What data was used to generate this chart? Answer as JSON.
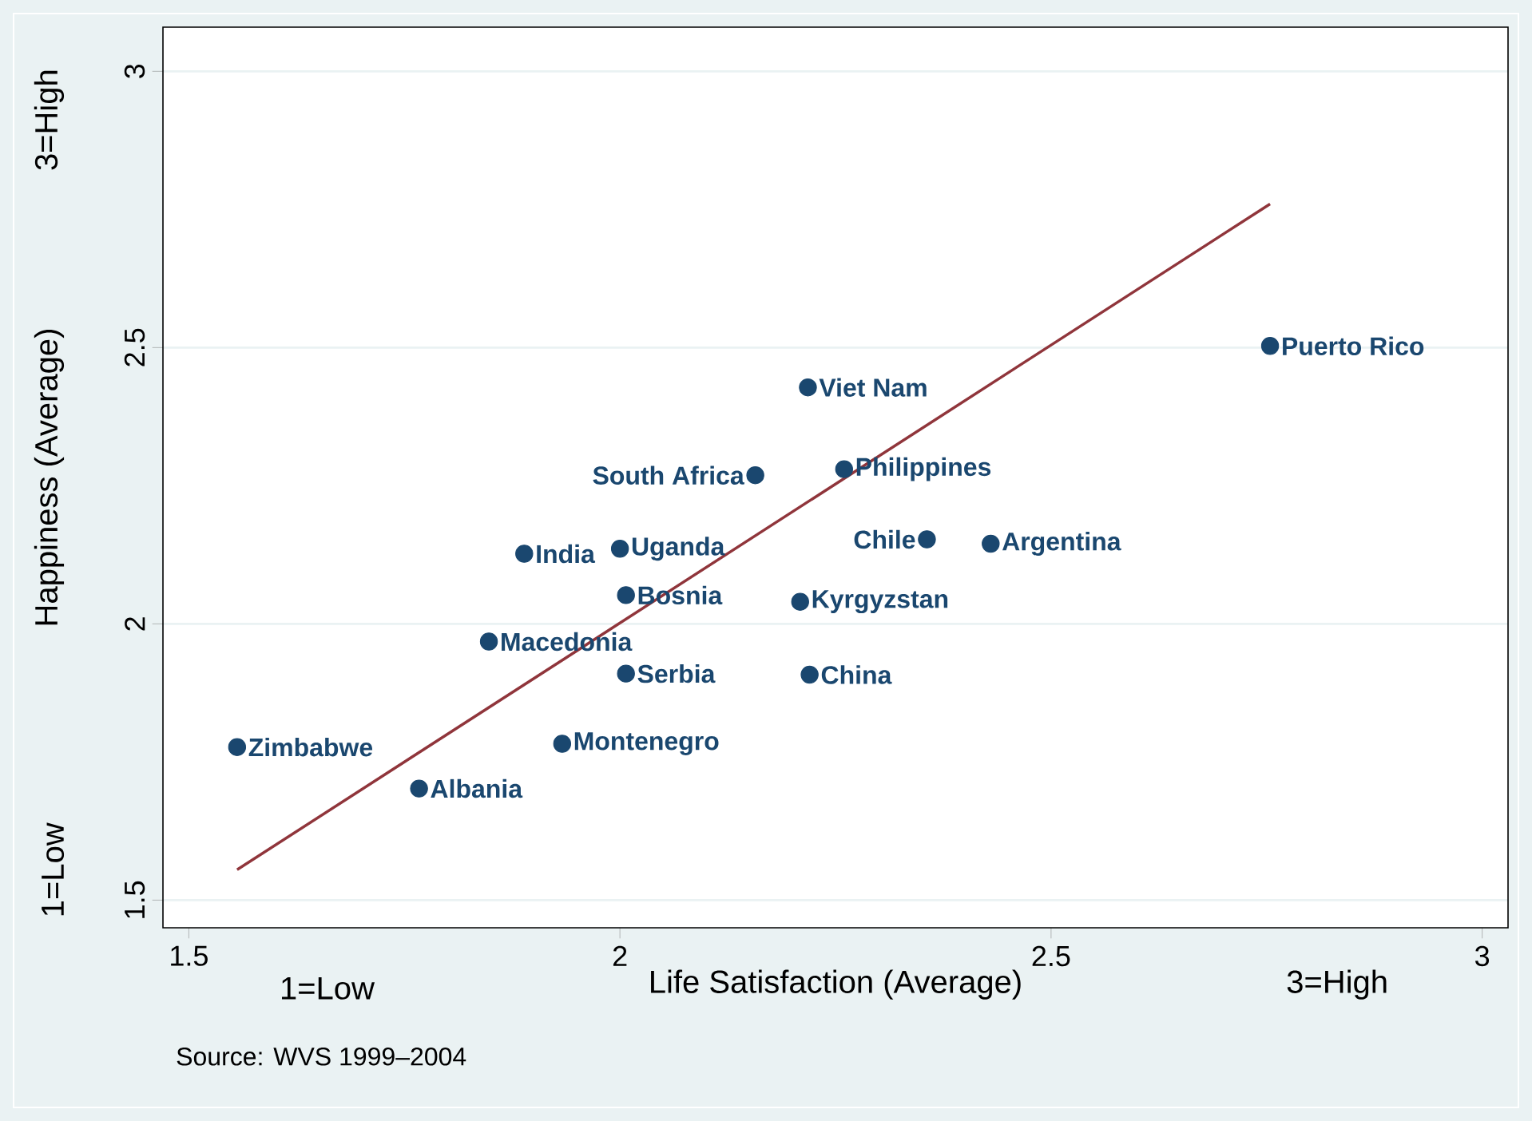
{
  "chart_data": {
    "type": "scatter",
    "xlabel": "Life Satisfaction (Average)",
    "ylabel": "Happiness (Average)",
    "xlim": [
      1.47,
      3.03
    ],
    "ylim": [
      1.45,
      3.08
    ],
    "xticks": [
      1.5,
      2,
      2.5,
      3
    ],
    "yticks": [
      1.5,
      2,
      2.5,
      3
    ],
    "grid": "y",
    "marker": "circle",
    "series": [
      {
        "color": "#1a476f",
        "x": [
          1.556,
          1.767,
          1.848,
          1.889,
          1.933,
          2.0,
          2.007,
          2.007,
          2.157,
          2.209,
          2.218,
          2.22,
          2.26,
          2.356,
          2.43,
          2.754
        ],
        "values": [
          1.777,
          1.702,
          1.968,
          2.127,
          1.783,
          2.136,
          2.052,
          1.91,
          2.269,
          2.04,
          2.428,
          1.908,
          2.28,
          2.153,
          2.145,
          2.503
        ]
      },
      {
        "type": "line",
        "color": "#90353b",
        "marker": "none",
        "x": [
          1.556,
          2.754
        ],
        "values": [
          1.555,
          2.76
        ]
      }
    ],
    "annotations": [
      {
        "text": "Zimbabwe",
        "x": 1.556,
        "y": 1.777
      },
      {
        "text": "Albania",
        "x": 1.767,
        "y": 1.702
      },
      {
        "text": "Macedonia",
        "x": 1.848,
        "y": 1.968
      },
      {
        "text": "India",
        "x": 1.889,
        "y": 2.127
      },
      {
        "text": "Montenegro",
        "x": 1.933,
        "y": 1.783
      },
      {
        "text": "Uganda",
        "x": 2.0,
        "y": 2.136
      },
      {
        "text": "Bosnia",
        "x": 2.007,
        "y": 2.052
      },
      {
        "text": "Serbia",
        "x": 2.007,
        "y": 1.91
      },
      {
        "text": "South Africa",
        "x": 2.157,
        "y": 2.269
      },
      {
        "text": "Kyrgyzstan",
        "x": 2.209,
        "y": 2.04
      },
      {
        "text": "Viet Nam",
        "x": 2.218,
        "y": 2.428
      },
      {
        "text": "China",
        "x": 2.22,
        "y": 1.908
      },
      {
        "text": "Philippines",
        "x": 2.26,
        "y": 2.28
      },
      {
        "text": "Chile",
        "x": 2.356,
        "y": 2.153
      },
      {
        "text": "Argentina",
        "x": 2.43,
        "y": 2.145
      },
      {
        "text": "Puerto Rico",
        "x": 2.754,
        "y": 2.503
      },
      "1=Low",
      "3=High",
      "1=Low",
      "3=High",
      "Source: WVS 1999–2004"
    ]
  }
}
